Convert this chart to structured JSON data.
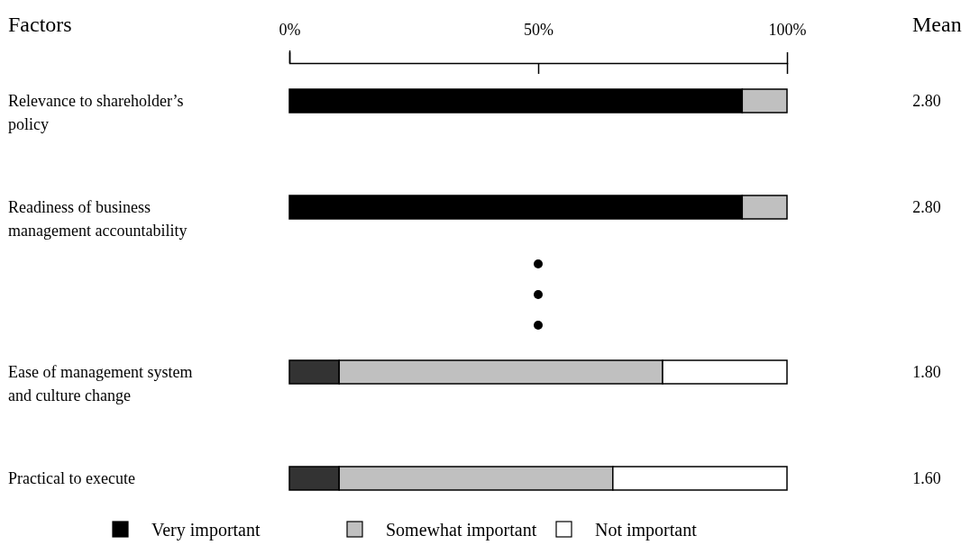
{
  "chart_data": {
    "type": "bar",
    "orientation": "horizontal",
    "stacked": true,
    "ylabel": "Factors",
    "y2label": "Mean",
    "categories": [
      "Relevance to shareholder’s policy",
      "Readiness of business management accountability",
      "Ease of management system and culture change",
      "Practical to execute"
    ],
    "series": [
      {
        "name": "Very important",
        "color": "#000000",
        "colors": [
          "#000000",
          "#000000",
          "#333333",
          "#333333"
        ],
        "values": [
          91,
          91,
          10,
          10
        ]
      },
      {
        "name": "Somewhat important",
        "color": "#c0c0c0",
        "values": [
          9,
          9,
          65,
          55
        ]
      },
      {
        "name": "Not important",
        "color": "#ffffff",
        "values": [
          0,
          0,
          25,
          35
        ]
      }
    ],
    "xlim": [
      0,
      100
    ],
    "xticks": [
      {
        "value": 0,
        "label": "0%"
      },
      {
        "value": 50,
        "label": "50%"
      },
      {
        "value": 100,
        "label": "100%"
      }
    ],
    "annotations": [
      "2.80",
      "2.80",
      "1.80",
      "1.60"
    ],
    "legend": "bottom"
  }
}
